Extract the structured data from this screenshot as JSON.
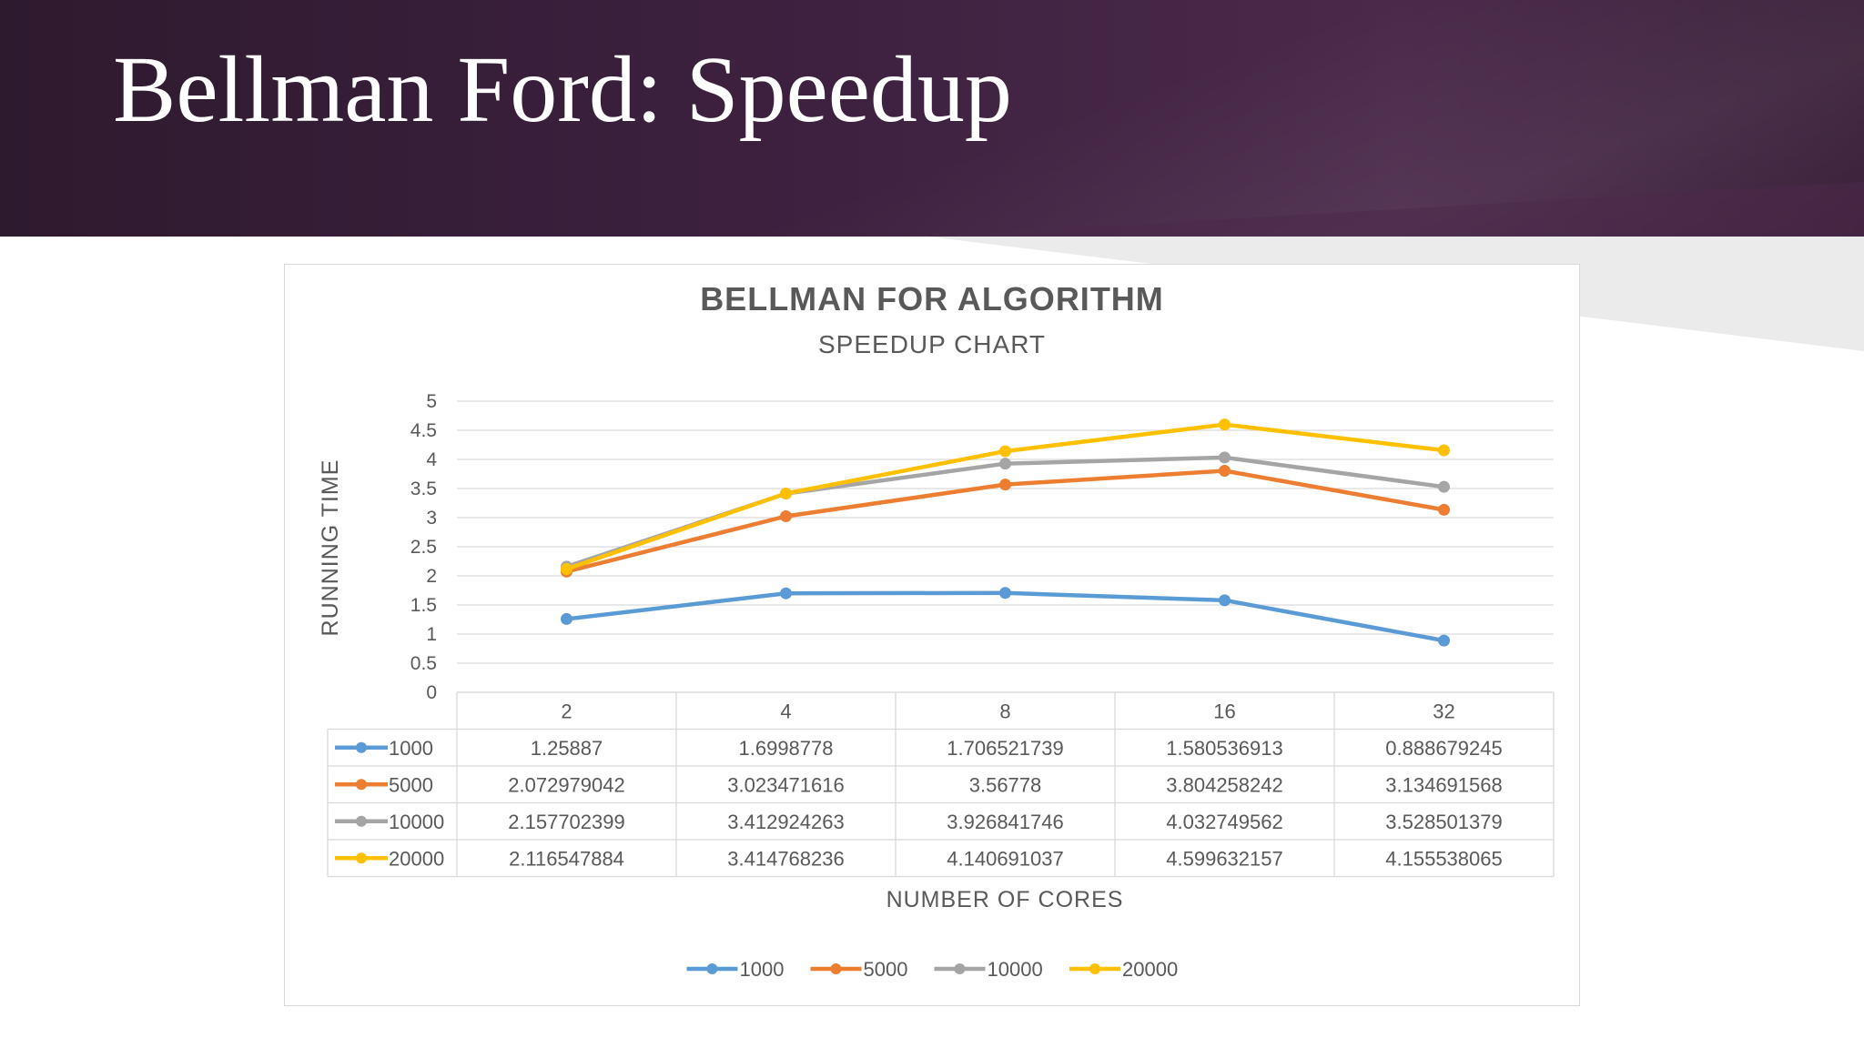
{
  "slide": {
    "title": "Bellman Ford: Speedup"
  },
  "theme": {
    "header_dark": "#3a2039",
    "title_color": "#ffffff",
    "text_gray": "#595959",
    "grid_gray": "#d9d9d9"
  },
  "chart_data": {
    "type": "line",
    "title": "BELLMAN FOR ALGORITHM",
    "subtitle": "SPEEDUP CHART",
    "xlabel": "NUMBER OF CORES",
    "ylabel": "RUNNING TIME",
    "categories": [
      "2",
      "4",
      "8",
      "16",
      "32"
    ],
    "ylim": [
      0,
      5
    ],
    "yticks": [
      "0",
      "0.5",
      "1",
      "1.5",
      "2",
      "2.5",
      "3",
      "3.5",
      "4",
      "4.5",
      "5"
    ],
    "grid": true,
    "legend_position": "bottom",
    "data_table": true,
    "series": [
      {
        "name": "1000",
        "color": "#5b9bd5",
        "values": [
          1.25887,
          1.6998778,
          1.706521739,
          1.580536913,
          0.888679245
        ],
        "labels": [
          "1.25887",
          "1.6998778",
          "1.706521739",
          "1.580536913",
          "0.888679245"
        ]
      },
      {
        "name": "5000",
        "color": "#ed7d31",
        "values": [
          2.072979042,
          3.023471616,
          3.56778,
          3.804258242,
          3.134691568
        ],
        "labels": [
          "2.072979042",
          "3.023471616",
          "3.56778",
          "3.804258242",
          "3.134691568"
        ]
      },
      {
        "name": "10000",
        "color": "#a5a5a5",
        "values": [
          2.157702399,
          3.412924263,
          3.926841746,
          4.032749562,
          3.528501379
        ],
        "labels": [
          "2.157702399",
          "3.412924263",
          "3.926841746",
          "4.032749562",
          "3.528501379"
        ]
      },
      {
        "name": "20000",
        "color": "#ffc000",
        "values": [
          2.116547884,
          3.414768236,
          4.140691037,
          4.599632157,
          4.155538065
        ],
        "labels": [
          "2.116547884",
          "3.414768236",
          "4.140691037",
          "4.599632157",
          "4.155538065"
        ]
      }
    ]
  }
}
